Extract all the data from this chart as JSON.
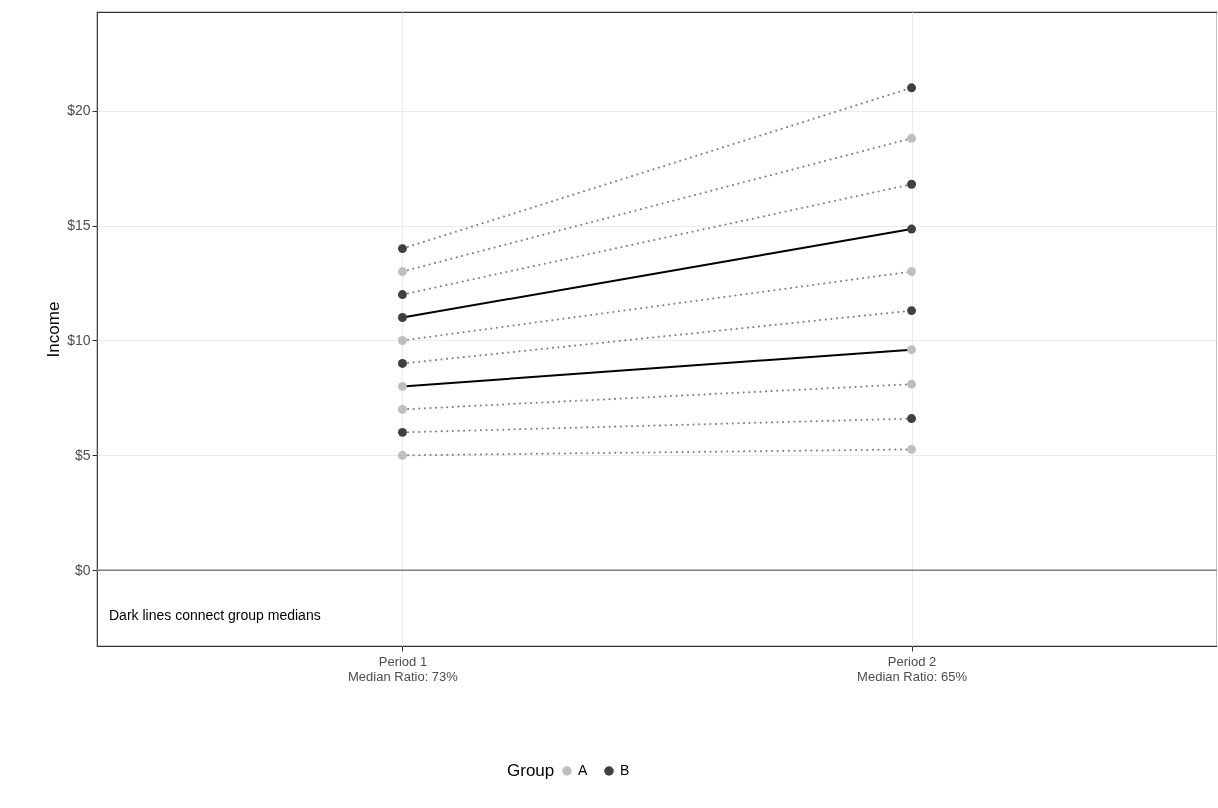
{
  "chart_data": {
    "type": "line",
    "ylabel": "Income",
    "legend_title": "Group",
    "legend": "bottom",
    "grid": true,
    "categories": [
      "Period 1\nMedian Ratio: 73%",
      "Period 2\nMedian Ratio: 65%"
    ],
    "ylim": [
      -3.3,
      24.3
    ],
    "yticks": [
      {
        "value": 0,
        "label": "$0"
      },
      {
        "value": 5,
        "label": "$5"
      },
      {
        "value": 10,
        "label": "$10"
      },
      {
        "value": 15,
        "label": "$15"
      },
      {
        "value": 20,
        "label": "$20"
      }
    ],
    "ref_lines": [
      {
        "axis": "y",
        "value": 0,
        "color": "#7f7f7f"
      }
    ],
    "annotations": [
      "Dark lines connect group medians"
    ],
    "series": [
      {
        "color": "#7f7f7f",
        "line_style": "dotted",
        "values": [
          5,
          5.26
        ]
      },
      {
        "color": "#7f7f7f",
        "line_style": "dotted",
        "values": [
          6,
          6.6
        ]
      },
      {
        "color": "#7f7f7f",
        "line_style": "dotted",
        "values": [
          7,
          8.1
        ]
      },
      {
        "color": "#7f7f7f",
        "line_style": "dotted",
        "values": [
          9,
          11.3
        ]
      },
      {
        "color": "#7f7f7f",
        "line_style": "dotted",
        "values": [
          10,
          13.0
        ]
      },
      {
        "color": "#7f7f7f",
        "line_style": "dotted",
        "values": [
          12,
          16.8
        ]
      },
      {
        "color": "#7f7f7f",
        "line_style": "dotted",
        "values": [
          13,
          18.8
        ]
      },
      {
        "color": "#7f7f7f",
        "line_style": "dotted",
        "values": [
          14,
          21.0
        ]
      },
      {
        "color": "#000000",
        "line_style": "solid",
        "values": [
          8,
          9.6
        ]
      },
      {
        "color": "#000000",
        "line_style": "solid",
        "values": [
          11,
          14.85
        ]
      },
      {
        "type": "scatter",
        "name": "A",
        "color": "#bebebe",
        "marker": "circle",
        "x": [
          "Period 1\nMedian Ratio: 73%",
          "Period 1\nMedian Ratio: 73%",
          "Period 1\nMedian Ratio: 73%",
          "Period 1\nMedian Ratio: 73%",
          "Period 1\nMedian Ratio: 73%",
          "Period 2\nMedian Ratio: 65%",
          "Period 2\nMedian Ratio: 65%",
          "Period 2\nMedian Ratio: 65%",
          "Period 2\nMedian Ratio: 65%",
          "Period 2\nMedian Ratio: 65%"
        ],
        "values": [
          5,
          7,
          8,
          10,
          13,
          5.26,
          8.1,
          9.6,
          13.0,
          18.8
        ]
      },
      {
        "type": "scatter",
        "name": "B",
        "color": "#404040",
        "marker": "circle",
        "x": [
          "Period 1\nMedian Ratio: 73%",
          "Period 1\nMedian Ratio: 73%",
          "Period 1\nMedian Ratio: 73%",
          "Period 1\nMedian Ratio: 73%",
          "Period 1\nMedian Ratio: 73%",
          "Period 2\nMedian Ratio: 65%",
          "Period 2\nMedian Ratio: 65%",
          "Period 2\nMedian Ratio: 65%",
          "Period 2\nMedian Ratio: 65%",
          "Period 2\nMedian Ratio: 65%"
        ],
        "values": [
          6,
          9,
          11,
          12,
          14,
          6.6,
          11.3,
          14.85,
          16.8,
          21.0
        ]
      }
    ]
  }
}
